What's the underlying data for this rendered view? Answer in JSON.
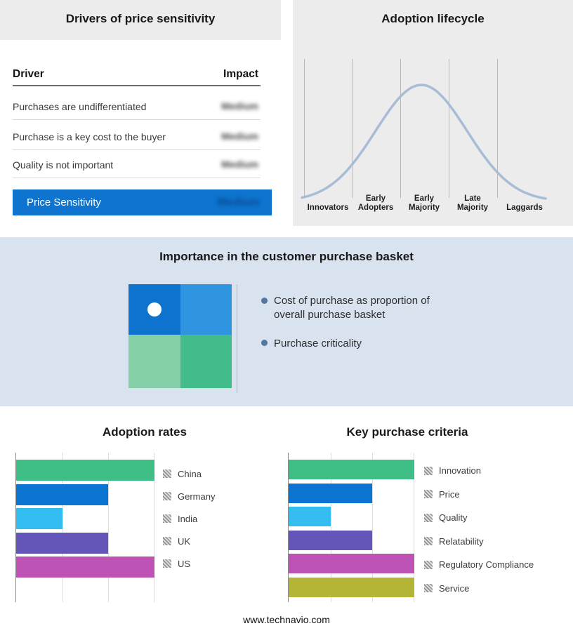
{
  "page": {
    "footer_url": "www.technavio.com"
  },
  "drivers": {
    "title": "Drivers of price sensitivity",
    "columns": {
      "driver": "Driver",
      "impact": "Impact"
    },
    "rows": [
      {
        "driver": "Purchases are undifferentiated",
        "impact": "Medium"
      },
      {
        "driver": "Purchase is a key cost to the buyer",
        "impact": "Medium"
      },
      {
        "driver": "Quality is not important",
        "impact": "Medium"
      }
    ],
    "summary": {
      "label": "Price Sensitivity",
      "impact": "Medium"
    }
  },
  "lifecycle": {
    "title": "Adoption lifecycle",
    "stages": [
      "Innovators",
      "Early Adopters",
      "Early Majority",
      "Late Majority",
      "Laggards"
    ]
  },
  "basket": {
    "title": "Importance in the customer purchase basket",
    "bullets": [
      "Cost of purchase as proportion of overall purchase basket",
      "Purchase criticality"
    ],
    "quadrant_colors": [
      "#0d73cf",
      "#3095e0",
      "#85cfa6",
      "#43bc8b"
    ]
  },
  "adoption": {
    "title": "Adoption rates"
  },
  "criteria": {
    "title": "Key purchase criteria"
  },
  "chart_data": [
    {
      "name": "drivers_of_price_sensitivity",
      "type": "table",
      "title": "Drivers of price sensitivity",
      "columns": [
        "Driver",
        "Impact"
      ],
      "rows": [
        [
          "Purchases are undifferentiated",
          "Medium"
        ],
        [
          "Purchase is a key cost to the buyer",
          "Medium"
        ],
        [
          "Quality is not important",
          "Medium"
        ],
        [
          "Price Sensitivity",
          "Medium"
        ]
      ],
      "note": "Impact values appear blurred/obscured in the source image"
    },
    {
      "name": "adoption_lifecycle",
      "type": "line",
      "title": "Adoption lifecycle",
      "categories": [
        "Innovators",
        "Early Adopters",
        "Early Majority",
        "Late Majority",
        "Laggards"
      ],
      "description": "Conceptual bell curve peaking over Early Majority; no numeric axes or values shown",
      "curve_color": "#a8bdd5",
      "grid": true
    },
    {
      "name": "adoption_rates",
      "type": "bar",
      "title": "Adoption rates",
      "orientation": "horizontal",
      "categories": [
        "China",
        "Germany",
        "India",
        "UK",
        "US"
      ],
      "values": [
        3,
        2,
        1,
        2,
        3
      ],
      "xlim": [
        0,
        3
      ],
      "value_note": "Relative units estimated from unlabeled gridlines (3 gridline intervals)",
      "colors": [
        "#3ebd85",
        "#0b74d1",
        "#33bdf0",
        "#6456b8",
        "#bf52b5"
      ],
      "grid": true,
      "legend_position": "right"
    },
    {
      "name": "key_purchase_criteria",
      "type": "bar",
      "title": "Key purchase criteria",
      "orientation": "horizontal",
      "categories": [
        "Innovation",
        "Price",
        "Quality",
        "Relatability",
        "Regulatory Compliance",
        "Service"
      ],
      "values": [
        3,
        2,
        1,
        2,
        3,
        3
      ],
      "xlim": [
        0,
        3
      ],
      "value_note": "Relative units estimated from unlabeled gridlines (3 gridline intervals)",
      "colors": [
        "#3ebd85",
        "#0b74d1",
        "#33bdf0",
        "#6456b8",
        "#bf52b5",
        "#b4b437"
      ],
      "grid": true,
      "legend_position": "right"
    }
  ]
}
